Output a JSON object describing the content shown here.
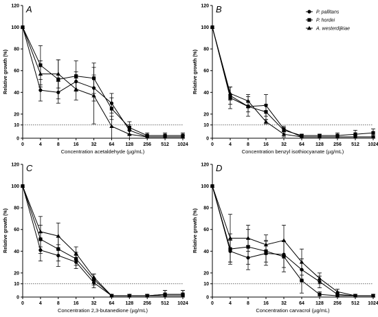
{
  "chart_data": [
    {
      "type": "line",
      "panel": "A",
      "x": [
        0,
        4,
        8,
        16,
        32,
        64,
        128,
        256,
        512,
        1024
      ],
      "xlabel": "Concentration acetaldehyde (µg/mL)",
      "ylabel": "Relative growth (%)",
      "yticks": [
        0,
        10,
        20,
        40,
        60,
        80,
        100,
        120
      ],
      "ylim": [
        0,
        120
      ],
      "threshold": 10,
      "series": [
        {
          "name": "P. pallitans",
          "marker": "circle",
          "values": [
            100,
            42,
            40,
            50,
            44,
            30,
            6,
            1,
            1,
            1
          ],
          "err": [
            0,
            10,
            10,
            9,
            12,
            9,
            4,
            1,
            1,
            1
          ]
        },
        {
          "name": "P. hordei",
          "marker": "square",
          "values": [
            100,
            65,
            52,
            55,
            53,
            25,
            8,
            2,
            2,
            2
          ],
          "err": [
            0,
            18,
            18,
            14,
            14,
            10,
            5,
            2,
            2,
            2
          ]
        },
        {
          "name": "A. westerdijkiae",
          "marker": "triangle",
          "values": [
            100,
            57,
            57,
            43,
            37,
            9,
            3,
            1,
            1,
            1
          ],
          "err": [
            0,
            12,
            13,
            10,
            26,
            9,
            3,
            1,
            1,
            1
          ]
        }
      ]
    },
    {
      "type": "line",
      "panel": "B",
      "x": [
        0,
        4,
        8,
        16,
        32,
        64,
        128,
        256,
        512,
        1024
      ],
      "xlabel": "Concentration benzyl isothiocyanate (µg/mL)",
      "ylabel": "Relative growth (%)",
      "yticks": [
        0,
        10,
        20,
        40,
        60,
        80,
        100,
        120
      ],
      "ylim": [
        0,
        120
      ],
      "threshold": 10,
      "series": [
        {
          "name": "P. pallitans",
          "marker": "circle",
          "values": [
            100,
            37,
            27,
            28,
            7,
            1,
            1,
            1,
            1,
            1
          ],
          "err": [
            0,
            8,
            5,
            10,
            2,
            1,
            1,
            1,
            1,
            1
          ]
        },
        {
          "name": "P. hordei",
          "marker": "square",
          "values": [
            100,
            35,
            27,
            22,
            6,
            2,
            2,
            2,
            3,
            4
          ],
          "err": [
            0,
            10,
            9,
            7,
            2,
            1,
            1,
            2,
            3,
            3
          ]
        },
        {
          "name": "A. westerdijkiae",
          "marker": "triangle",
          "values": [
            100,
            39,
            32,
            13,
            3,
            1,
            1,
            1,
            1,
            1
          ],
          "err": [
            0,
            6,
            6,
            2,
            2,
            1,
            1,
            1,
            1,
            1
          ]
        }
      ]
    },
    {
      "type": "line",
      "panel": "C",
      "x": [
        0,
        4,
        8,
        16,
        32,
        64,
        128,
        256,
        512,
        1024
      ],
      "xlabel": "Concentration 2,3-butanedione (µg/mL)",
      "ylabel": "Relative growth (%)",
      "yticks": [
        0,
        10,
        20,
        40,
        60,
        80,
        100,
        120
      ],
      "ylim": [
        0,
        120
      ],
      "threshold": 10,
      "series": [
        {
          "name": "P. pallitans",
          "marker": "circle",
          "values": [
            100,
            41,
            36,
            30,
            11,
            1,
            1,
            1,
            1,
            1
          ],
          "err": [
            0,
            10,
            10,
            6,
            4,
            1,
            1,
            1,
            1,
            1
          ]
        },
        {
          "name": "P. hordei",
          "marker": "square",
          "values": [
            100,
            51,
            42,
            33,
            14,
            1,
            1,
            1,
            2,
            2
          ],
          "err": [
            0,
            13,
            11,
            6,
            5,
            1,
            1,
            1,
            3,
            3
          ]
        },
        {
          "name": "A. westerdijkiae",
          "marker": "triangle",
          "values": [
            100,
            58,
            54,
            38,
            16,
            1,
            1,
            1,
            2,
            2
          ],
          "err": [
            0,
            14,
            12,
            6,
            3,
            1,
            1,
            1,
            3,
            3
          ]
        }
      ]
    },
    {
      "type": "line",
      "panel": "D",
      "x": [
        0,
        4,
        8,
        16,
        32,
        64,
        128,
        256,
        512,
        1024
      ],
      "xlabel": "Concentration carvacrol (µg/mL)",
      "ylabel": "Relative growth (%)",
      "yticks": [
        0,
        10,
        20,
        40,
        60,
        80,
        100,
        120
      ],
      "ylim": [
        0,
        120
      ],
      "threshold": 10,
      "series": [
        {
          "name": "P. pallitans",
          "marker": "circle",
          "values": [
            100,
            40,
            34,
            38,
            37,
            23,
            12,
            2,
            1,
            1
          ],
          "err": [
            0,
            10,
            11,
            11,
            12,
            10,
            5,
            1,
            1,
            1
          ]
        },
        {
          "name": "P. hordei",
          "marker": "square",
          "values": [
            100,
            42,
            44,
            40,
            35,
            13,
            2,
            1,
            1,
            1
          ],
          "err": [
            0,
            14,
            16,
            10,
            14,
            10,
            2,
            1,
            1,
            1
          ]
        },
        {
          "name": "A. westerdijkiae",
          "marker": "triangle",
          "values": [
            100,
            52,
            52,
            46,
            50,
            30,
            15,
            4,
            1,
            1
          ],
          "err": [
            0,
            22,
            12,
            9,
            14,
            12,
            5,
            2,
            1,
            1
          ]
        }
      ]
    }
  ],
  "legend": {
    "entries": [
      {
        "label": "P. pallitans",
        "marker": "circle"
      },
      {
        "label": "P. hordei",
        "marker": "square"
      },
      {
        "label": "A. westerdijkiae",
        "marker": "triangle"
      }
    ],
    "placement": "top-right of panel B"
  },
  "colors": {
    "lines": "#000000",
    "threshold": "#555555"
  }
}
